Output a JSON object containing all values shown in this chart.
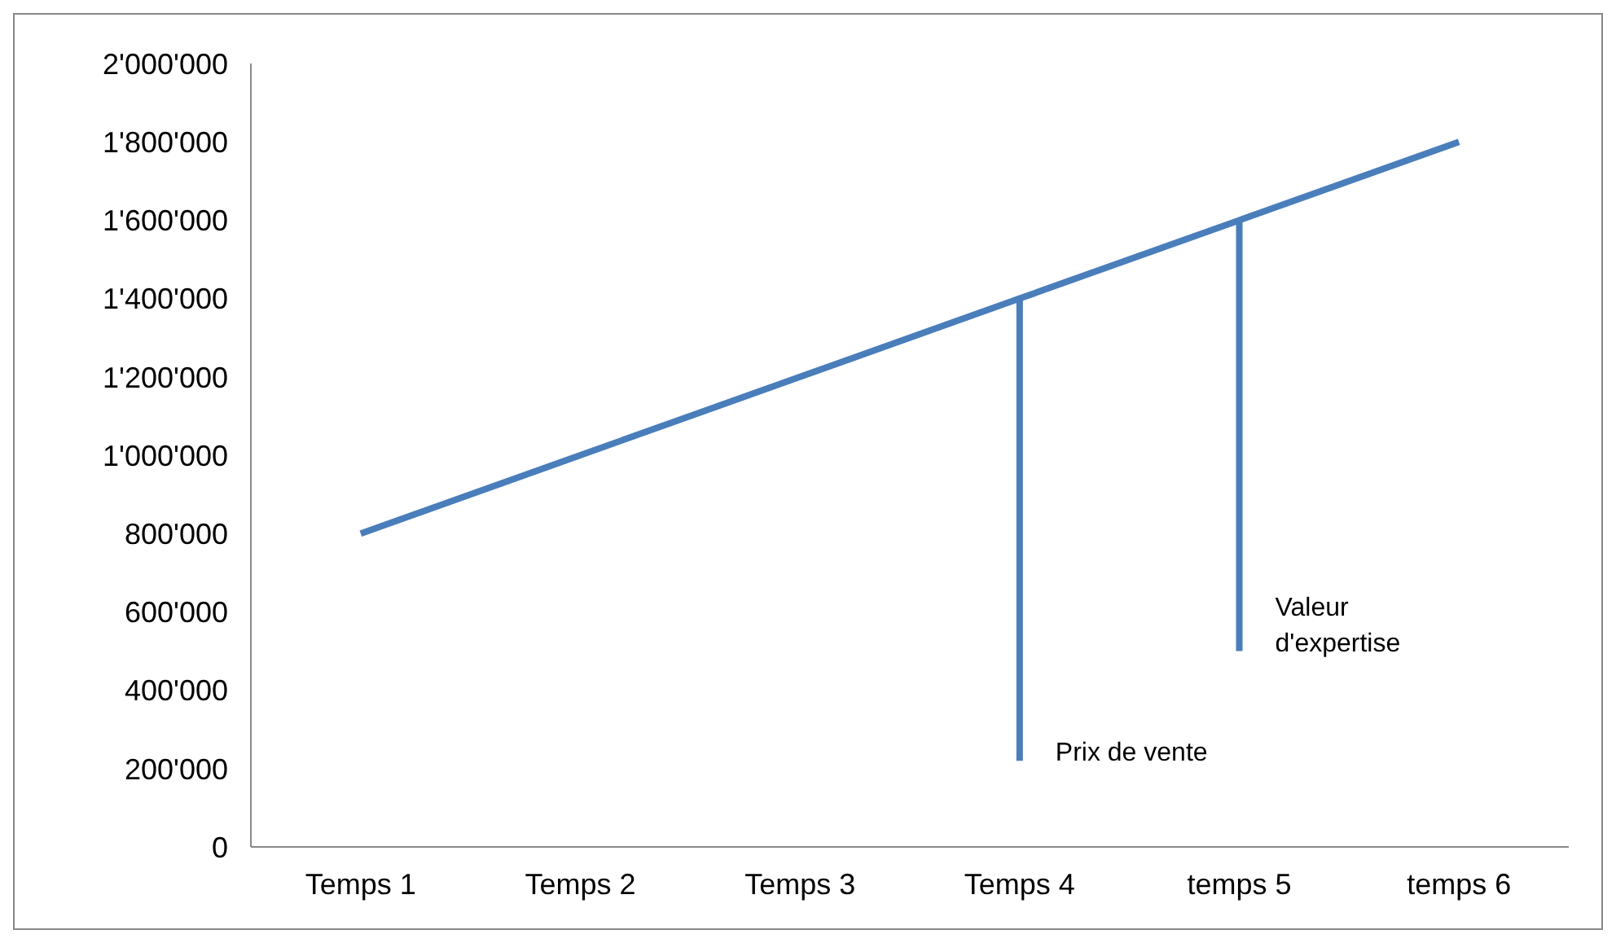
{
  "chart_data": {
    "type": "line",
    "categories": [
      "Temps 1",
      "Temps 2",
      "Temps 3",
      "Temps 4",
      "temps 5",
      "temps 6"
    ],
    "series": [
      {
        "color": "#4a7ebb",
        "values": [
          800000,
          1000000,
          1200000,
          1400000,
          1600000,
          1800000
        ]
      },
      {
        "color": "#4a7ebb",
        "x": [
          "Temps 4",
          "Temps 4"
        ],
        "values": [
          1400000,
          220000
        ]
      },
      {
        "color": "#4a7ebb",
        "x": [
          "temps 5",
          "temps 5"
        ],
        "values": [
          1600000,
          500000
        ]
      }
    ],
    "ylim": [
      0,
      2000000
    ],
    "yticks": [
      0,
      {
        "value": 200000,
        "label": "200'000"
      },
      {
        "value": 400000,
        "label": "400'000"
      },
      {
        "value": 600000,
        "label": "600'000"
      },
      {
        "value": 800000,
        "label": "800'000"
      },
      {
        "value": 1000000,
        "label": "1'000'000"
      },
      {
        "value": 1200000,
        "label": "1'200'000"
      },
      {
        "value": 1400000,
        "label": "1'400'000"
      },
      {
        "value": 1600000,
        "label": "1'600'000"
      },
      {
        "value": 1800000,
        "label": "1'800'000"
      },
      {
        "value": 2000000,
        "label": "2'000'000"
      }
    ],
    "annotations": [
      {
        "text": "Prix de vente",
        "x": "Temps 4",
        "y": 220000
      },
      {
        "text": "Valeur d'expertise",
        "x": "temps 5",
        "y": 500000
      }
    ],
    "grid": false,
    "legend": false,
    "marker": "none",
    "line_style": "solid"
  }
}
